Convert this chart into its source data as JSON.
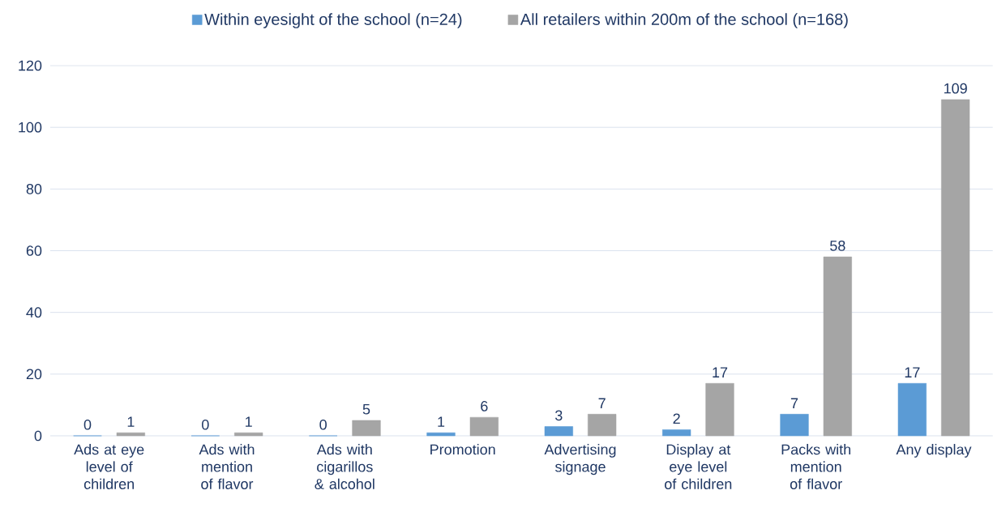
{
  "chart_data": {
    "type": "bar",
    "categories": [
      "Ads at eye level of children",
      "Ads with mention of flavor",
      "Ads with cigarillos & alcohol",
      "Promotion",
      "Advertising signage",
      "Display at eye level of children",
      "Packs with mention of flavor",
      "Any display"
    ],
    "series": [
      {
        "name": "Within eyesight of the school (n=24)",
        "color": "#5b9bd5",
        "values": [
          0,
          0,
          0,
          1,
          3,
          2,
          7,
          17
        ]
      },
      {
        "name": "All retailers within 200m of the school (n=168)",
        "color": "#a5a5a5",
        "values": [
          1,
          1,
          5,
          6,
          7,
          17,
          58,
          109
        ]
      }
    ],
    "ylim": [
      0,
      120
    ],
    "yticks": [
      0,
      20,
      40,
      60,
      80,
      100,
      120
    ],
    "grid": "y",
    "legend": "top",
    "data_labels": true
  }
}
